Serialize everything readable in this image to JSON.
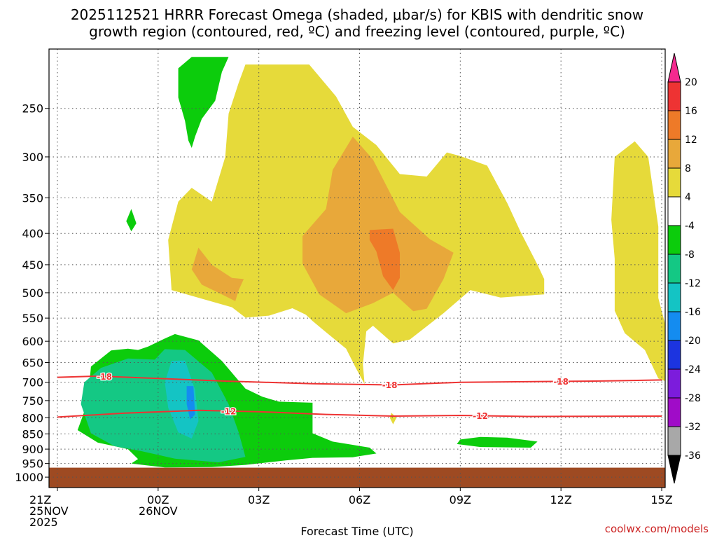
{
  "title_lines": [
    "2025112521 HRRR Forecast Omega (shaded, μbar/s) for KBIS with dendritic snow",
    "growth region (contoured, red, ºC) and freezing level (contoured, purple, ºC)"
  ],
  "xlabel": "Forecast Time (UTC)",
  "credit": "coolwx.com/models",
  "credit_color": "#cc2222",
  "chart_data": {
    "type": "heatmap",
    "title": "2025112521 HRRR Forecast Omega (shaded, μbar/s) for KBIS with dendritic snow growth region (contoured, red, ºC) and freezing level (contoured, purple, ºC)",
    "xlabel": "Forecast Time (UTC)",
    "ylabel": "",
    "x_ticks": [
      {
        "h": 0,
        "lines": [
          "21Z",
          "25NOV",
          "2025"
        ]
      },
      {
        "h": 3,
        "lines": [
          "00Z",
          "26NOV"
        ]
      },
      {
        "h": 6,
        "lines": [
          "03Z"
        ]
      },
      {
        "h": 9,
        "lines": [
          "06Z"
        ]
      },
      {
        "h": 12,
        "lines": [
          "09Z"
        ]
      },
      {
        "h": 15,
        "lines": [
          "12Z"
        ]
      },
      {
        "h": 18,
        "lines": [
          "15Z"
        ]
      }
    ],
    "xlim": [
      0,
      18
    ],
    "ylim": [
      1040,
      200
    ],
    "y_scale": "log-pressure",
    "y_ticks": [
      250,
      300,
      350,
      400,
      450,
      500,
      550,
      600,
      650,
      700,
      750,
      800,
      850,
      900,
      950,
      1000
    ],
    "grid": true,
    "colorbar": {
      "labels": [
        "20",
        "16",
        "12",
        "8",
        "4",
        "-4",
        "-8",
        "-12",
        "-16",
        "-20",
        "-24",
        "-28",
        "-32",
        "-36"
      ],
      "colors": [
        "#f4298f",
        "#ee3333",
        "#ee7a28",
        "#e8a83a",
        "#e6da3a",
        "#ffffff",
        "#0ccc0c",
        "#14c884",
        "#14c4c4",
        "#148cf0",
        "#1c34e0",
        "#7c1cdc",
        "#a00cc8",
        "#a8a8a8",
        "#000000"
      ]
    },
    "ground_color": "#9e4a22",
    "ground_top_hpa": 965,
    "omega_regions": [
      {
        "color": "#0ccc0c",
        "points": [
          [
            0.9,
            755
          ],
          [
            1.0,
            660
          ],
          [
            1.6,
            621
          ],
          [
            2.1,
            617
          ],
          [
            2.4,
            620
          ],
          [
            2.7,
            612
          ],
          [
            3.2,
            594
          ],
          [
            3.5,
            584
          ],
          [
            4.2,
            598
          ],
          [
            4.9,
            646
          ],
          [
            5.6,
            717
          ],
          [
            6.1,
            739
          ],
          [
            6.6,
            753
          ],
          [
            7.6,
            756
          ],
          [
            7.6,
            848
          ],
          [
            8.2,
            875
          ],
          [
            9.3,
            895
          ],
          [
            9.5,
            915
          ],
          [
            8.8,
            928
          ],
          [
            7.6,
            930
          ],
          [
            6.8,
            939
          ],
          [
            5.6,
            955
          ],
          [
            4.6,
            963
          ],
          [
            3.2,
            964
          ],
          [
            2.6,
            956
          ],
          [
            2.2,
            950
          ],
          [
            2.4,
            934
          ],
          [
            2.1,
            900
          ],
          [
            1.2,
            878
          ],
          [
            0.6,
            838
          ]
        ]
      },
      {
        "color": "#14c884",
        "points": [
          [
            0.7,
            760
          ],
          [
            0.8,
            700
          ],
          [
            1.3,
            663
          ],
          [
            2.1,
            640
          ],
          [
            2.9,
            643
          ],
          [
            3.2,
            618
          ],
          [
            3.8,
            620
          ],
          [
            4.6,
            675
          ],
          [
            5.1,
            760
          ],
          [
            5.4,
            845
          ],
          [
            5.6,
            927
          ],
          [
            4.8,
            946
          ],
          [
            3.5,
            933
          ],
          [
            2.5,
            907
          ],
          [
            1.7,
            890
          ],
          [
            1.0,
            848
          ]
        ]
      },
      {
        "color": "#14c4c4",
        "points": [
          [
            3.4,
            646
          ],
          [
            3.8,
            645
          ],
          [
            4.1,
            720
          ],
          [
            4.2,
            810
          ],
          [
            4.0,
            865
          ],
          [
            3.6,
            845
          ],
          [
            3.3,
            770
          ],
          [
            3.2,
            700
          ]
        ]
      },
      {
        "color": "#148cf0",
        "points": [
          [
            3.85,
            710
          ],
          [
            4.05,
            710
          ],
          [
            4.1,
            790
          ],
          [
            3.95,
            805
          ],
          [
            3.85,
            760
          ]
        ]
      },
      {
        "color": "#0ccc0c",
        "points": [
          [
            4.0,
            206
          ],
          [
            5.1,
            206
          ],
          [
            4.9,
            218
          ],
          [
            4.7,
            243
          ],
          [
            4.3,
            260
          ],
          [
            4.1,
            278
          ],
          [
            4.0,
            290
          ],
          [
            3.9,
            282
          ],
          [
            3.8,
            262
          ],
          [
            3.6,
            240
          ],
          [
            3.6,
            215
          ]
        ]
      },
      {
        "color": "#0ccc0c",
        "points": [
          [
            2.2,
            365
          ],
          [
            2.35,
            385
          ],
          [
            2.2,
            397
          ],
          [
            2.05,
            382
          ]
        ]
      },
      {
        "color": "#0ccc0c",
        "points": [
          [
            12.0,
            868
          ],
          [
            12.6,
            860
          ],
          [
            13.4,
            862
          ],
          [
            14.3,
            875
          ],
          [
            14.1,
            895
          ],
          [
            12.6,
            893
          ],
          [
            11.9,
            883
          ]
        ]
      },
      {
        "color": "#e6da3a",
        "points": [
          [
            6.0,
            212
          ],
          [
            7.5,
            212
          ],
          [
            8.3,
            239
          ],
          [
            8.8,
            268
          ],
          [
            9.5,
            287
          ],
          [
            10.2,
            320
          ],
          [
            11.0,
            323
          ],
          [
            11.6,
            295
          ],
          [
            12.0,
            299
          ],
          [
            12.8,
            310
          ],
          [
            13.4,
            357
          ],
          [
            13.8,
            398
          ],
          [
            14.3,
            450
          ],
          [
            14.5,
            475
          ],
          [
            14.5,
            503
          ],
          [
            13.2,
            509
          ],
          [
            12.3,
            495
          ],
          [
            11.5,
            540
          ],
          [
            10.5,
            596
          ],
          [
            10.0,
            605
          ],
          [
            9.4,
            566
          ],
          [
            9.2,
            578
          ],
          [
            9.1,
            655
          ],
          [
            9.15,
            705
          ],
          [
            8.9,
            665
          ],
          [
            8.6,
            617
          ],
          [
            8.0,
            580
          ],
          [
            7.6,
            556
          ],
          [
            7.4,
            543
          ],
          [
            7.0,
            530
          ],
          [
            6.3,
            545
          ],
          [
            5.6,
            549
          ],
          [
            5.2,
            528
          ],
          [
            4.4,
            513
          ],
          [
            3.4,
            495
          ],
          [
            3.3,
            410
          ],
          [
            3.6,
            355
          ],
          [
            4.0,
            337
          ],
          [
            4.6,
            355
          ],
          [
            5.0,
            300
          ],
          [
            5.1,
            255
          ],
          [
            5.4,
            227
          ],
          [
            5.6,
            212
          ]
        ]
      },
      {
        "color": "#e8a83a",
        "points": [
          [
            7.3,
            404
          ],
          [
            8.0,
            365
          ],
          [
            8.2,
            315
          ],
          [
            8.8,
            278
          ],
          [
            9.4,
            303
          ],
          [
            10.2,
            369
          ],
          [
            11.1,
            409
          ],
          [
            11.8,
            430
          ],
          [
            11.5,
            475
          ],
          [
            11.0,
            531
          ],
          [
            10.6,
            536
          ],
          [
            10.0,
            500
          ],
          [
            9.4,
            520
          ],
          [
            8.6,
            540
          ],
          [
            7.8,
            503
          ],
          [
            7.3,
            448
          ]
        ]
      },
      {
        "color": "#e8a83a",
        "points": [
          [
            4.0,
            458
          ],
          [
            4.2,
            422
          ],
          [
            4.6,
            450
          ],
          [
            5.2,
            473
          ],
          [
            5.55,
            475
          ],
          [
            5.4,
            495
          ],
          [
            5.3,
            516
          ],
          [
            4.8,
            500
          ],
          [
            4.3,
            485
          ]
        ]
      },
      {
        "color": "#ee7a28",
        "points": [
          [
            9.3,
            395
          ],
          [
            10.0,
            393
          ],
          [
            10.2,
            430
          ],
          [
            10.2,
            473
          ],
          [
            10.0,
            495
          ],
          [
            9.7,
            470
          ],
          [
            9.5,
            428
          ],
          [
            9.3,
            410
          ]
        ]
      },
      {
        "color": "#e6da3a",
        "points": [
          [
            9.95,
            785
          ],
          [
            10.1,
            800
          ],
          [
            10.0,
            820
          ],
          [
            9.9,
            800
          ]
        ]
      },
      {
        "color": "#e6da3a",
        "points": [
          [
            16.6,
            300
          ],
          [
            17.2,
            283
          ],
          [
            17.6,
            300
          ],
          [
            17.9,
            390
          ],
          [
            17.9,
            510
          ],
          [
            18.2,
            590
          ],
          [
            18.2,
            700
          ],
          [
            17.9,
            690
          ],
          [
            17.5,
            620
          ],
          [
            16.9,
            582
          ],
          [
            16.6,
            535
          ],
          [
            16.6,
            440
          ],
          [
            16.5,
            380
          ]
        ]
      }
    ],
    "isotherms": [
      {
        "label": "-18",
        "color": "#ee3333",
        "points": [
          [
            0,
            687
          ],
          [
            1.2,
            684
          ],
          [
            3,
            690
          ],
          [
            5,
            697
          ],
          [
            7.6,
            704
          ],
          [
            10,
            707
          ],
          [
            12,
            700
          ],
          [
            16,
            697
          ],
          [
            18,
            694
          ]
        ],
        "label_positions": [
          1.4,
          9.9,
          15.0
        ]
      },
      {
        "label": "-12",
        "color": "#ee3333",
        "points": [
          [
            0,
            798
          ],
          [
            2,
            786
          ],
          [
            4.2,
            778
          ],
          [
            6,
            782
          ],
          [
            8,
            790
          ],
          [
            10,
            795
          ],
          [
            12,
            793
          ],
          [
            14,
            796
          ],
          [
            18,
            795
          ]
        ],
        "label_positions": [
          5.1,
          12.6
        ]
      }
    ]
  }
}
